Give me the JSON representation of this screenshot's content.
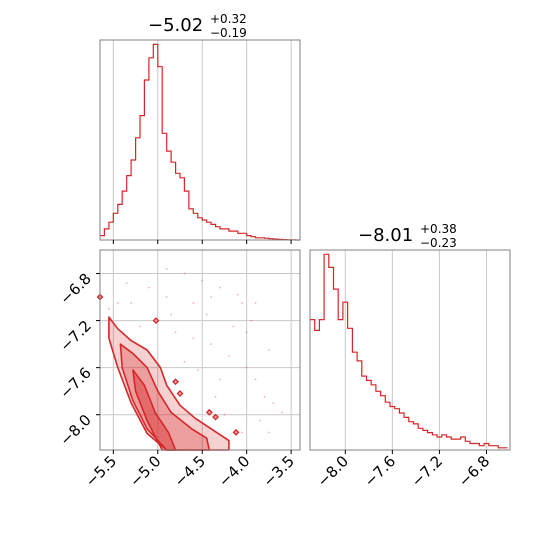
{
  "chart_data": [
    {
      "type": "histogram",
      "panel": "top-left",
      "title": "−5.02",
      "title_plus": "+0.32",
      "title_minus": "−0.19",
      "xlim": [
        -5.65,
        -3.4
      ],
      "step_x": [
        -5.65,
        -5.6,
        -5.55,
        -5.5,
        -5.45,
        -5.4,
        -5.35,
        -5.3,
        -5.25,
        -5.2,
        -5.15,
        -5.1,
        -5.05,
        -5.0,
        -4.95,
        -4.9,
        -4.85,
        -4.8,
        -4.75,
        -4.7,
        -4.65,
        -4.6,
        -4.55,
        -4.5,
        -4.45,
        -4.4,
        -4.35,
        -4.3,
        -4.25,
        -4.2,
        -4.15,
        -4.1,
        -4.05,
        -4.0,
        -3.95,
        -3.9,
        -3.85,
        -3.8,
        -3.75,
        -3.7,
        -3.65,
        -3.6,
        -3.55,
        -3.5,
        -3.45,
        -3.4
      ],
      "step_y": [
        0.02,
        0.05,
        0.08,
        0.12,
        0.16,
        0.22,
        0.29,
        0.36,
        0.46,
        0.56,
        0.72,
        0.82,
        0.88,
        0.78,
        0.48,
        0.4,
        0.35,
        0.3,
        0.28,
        0.22,
        0.14,
        0.12,
        0.1,
        0.09,
        0.08,
        0.07,
        0.06,
        0.05,
        0.05,
        0.04,
        0.04,
        0.03,
        0.03,
        0.02,
        0.015,
        0.01,
        0.01,
        0.008,
        0.006,
        0.004,
        0.003,
        0.002,
        0.001,
        0.001,
        0.0
      ],
      "ymax": 0.9,
      "color": "#d62728",
      "grid": true
    },
    {
      "type": "histogram",
      "panel": "bottom-right",
      "title": "−8.01",
      "title_plus": "+0.38",
      "title_minus": "−0.23",
      "xlim": [
        -8.3,
        -6.6
      ],
      "step_x": [
        -8.3,
        -8.26,
        -8.22,
        -8.18,
        -8.14,
        -8.1,
        -8.06,
        -8.02,
        -7.98,
        -7.94,
        -7.9,
        -7.86,
        -7.82,
        -7.78,
        -7.74,
        -7.7,
        -7.66,
        -7.62,
        -7.58,
        -7.54,
        -7.5,
        -7.46,
        -7.42,
        -7.38,
        -7.34,
        -7.3,
        -7.26,
        -7.22,
        -7.18,
        -7.14,
        -7.1,
        -7.06,
        -7.02,
        -6.98,
        -6.94,
        -6.9,
        -6.86,
        -6.82,
        -6.78,
        -6.74,
        -6.7,
        -6.66,
        -6.62
      ],
      "step_y": [
        0.6,
        0.55,
        0.6,
        0.9,
        0.84,
        0.74,
        0.6,
        0.68,
        0.56,
        0.45,
        0.41,
        0.34,
        0.32,
        0.3,
        0.27,
        0.25,
        0.22,
        0.2,
        0.19,
        0.17,
        0.15,
        0.13,
        0.12,
        0.1,
        0.09,
        0.08,
        0.07,
        0.06,
        0.07,
        0.06,
        0.05,
        0.05,
        0.06,
        0.04,
        0.03,
        0.03,
        0.02,
        0.03,
        0.02,
        0.02,
        0.01,
        0.01
      ],
      "ymax": 0.92,
      "color": "#d62728",
      "grid": true
    },
    {
      "type": "contour",
      "panel": "bottom-left",
      "xlim": [
        -5.65,
        -3.4
      ],
      "ylim": [
        -8.3,
        -6.6
      ],
      "contours": [
        {
          "level": "outer",
          "alpha": 0.35,
          "points": [
            [
              -5.55,
              -7.17
            ],
            [
              -5.45,
              -7.27
            ],
            [
              -5.3,
              -7.37
            ],
            [
              -5.12,
              -7.45
            ],
            [
              -4.97,
              -7.6
            ],
            [
              -4.9,
              -7.75
            ],
            [
              -4.75,
              -7.92
            ],
            [
              -4.58,
              -8.03
            ],
            [
              -4.4,
              -8.12
            ],
            [
              -4.2,
              -8.22
            ],
            [
              -4.2,
              -8.3
            ],
            [
              -4.9,
              -8.3
            ],
            [
              -5.12,
              -8.16
            ],
            [
              -5.3,
              -7.9
            ],
            [
              -5.45,
              -7.6
            ],
            [
              -5.55,
              -7.35
            ]
          ]
        },
        {
          "level": "middle",
          "alpha": 0.5,
          "points": [
            [
              -5.42,
              -7.4
            ],
            [
              -5.28,
              -7.48
            ],
            [
              -5.12,
              -7.6
            ],
            [
              -5.0,
              -7.8
            ],
            [
              -4.85,
              -7.98
            ],
            [
              -4.62,
              -8.12
            ],
            [
              -4.45,
              -8.2
            ],
            [
              -4.42,
              -8.3
            ],
            [
              -4.9,
              -8.3
            ],
            [
              -5.12,
              -8.12
            ],
            [
              -5.28,
              -7.88
            ],
            [
              -5.4,
              -7.6
            ]
          ]
        },
        {
          "level": "inner",
          "alpha": 0.7,
          "points": [
            [
              -5.28,
              -7.62
            ],
            [
              -5.15,
              -7.75
            ],
            [
              -5.03,
              -7.98
            ],
            [
              -4.88,
              -8.15
            ],
            [
              -4.8,
              -8.3
            ],
            [
              -4.95,
              -8.3
            ],
            [
              -5.12,
              -8.05
            ],
            [
              -5.25,
              -7.8
            ]
          ]
        }
      ],
      "scatter_points": [
        [
          -4.9,
          -6.76
        ],
        [
          -4.7,
          -6.8
        ],
        [
          -4.5,
          -6.86
        ],
        [
          -4.3,
          -6.92
        ],
        [
          -4.1,
          -6.98
        ],
        [
          -4.05,
          -7.05
        ],
        [
          -3.95,
          -7.2
        ],
        [
          -4.6,
          -7.05
        ],
        [
          -4.9,
          -7.0
        ],
        [
          -5.1,
          -6.92
        ],
        [
          -5.3,
          -7.05
        ],
        [
          -5.35,
          -6.88
        ],
        [
          -4.8,
          -7.3
        ],
        [
          -4.6,
          -7.35
        ],
        [
          -4.4,
          -7.4
        ],
        [
          -4.2,
          -7.5
        ],
        [
          -4.0,
          -7.6
        ],
        [
          -3.9,
          -7.7
        ],
        [
          -3.8,
          -7.85
        ],
        [
          -3.7,
          -7.9
        ],
        [
          -3.6,
          -7.98
        ],
        [
          -3.85,
          -8.05
        ],
        [
          -4.05,
          -8.15
        ],
        [
          -4.3,
          -7.7
        ],
        [
          -4.55,
          -7.62
        ],
        [
          -4.7,
          -7.55
        ],
        [
          -4.75,
          -7.8
        ],
        [
          -4.25,
          -8.0
        ],
        [
          -3.75,
          -8.15
        ],
        [
          -4.15,
          -7.25
        ],
        [
          -4.45,
          -7.15
        ],
        [
          -4.85,
          -7.15
        ],
        [
          -5.2,
          -7.25
        ],
        [
          -5.45,
          -7.05
        ],
        [
          -5.55,
          -7.1
        ],
        [
          -4.35,
          -7.85
        ],
        [
          -4.0,
          -7.3
        ],
        [
          -3.75,
          -7.45
        ],
        [
          -3.9,
          -7.05
        ],
        [
          -4.4,
          -7.0
        ]
      ],
      "islands": [
        [
          -5.65,
          -7.0
        ],
        [
          -5.02,
          -7.2
        ],
        [
          -4.8,
          -7.72
        ],
        [
          -4.75,
          -7.82
        ],
        [
          -4.42,
          -7.98
        ],
        [
          -4.35,
          -8.02
        ],
        [
          -4.12,
          -8.15
        ]
      ],
      "color": "#d62728",
      "grid": true,
      "xticks": [
        "−5.5",
        "−5.0",
        "−4.5",
        "−4.0",
        "−3.5"
      ],
      "xtick_values": [
        -5.5,
        -5.0,
        -4.5,
        -4.0,
        -3.5
      ],
      "yticks": [
        "−6.8",
        "−7.2",
        "−7.6",
        "−8.0"
      ],
      "ytick_values": [
        -6.8,
        -7.2,
        -7.6,
        -8.0
      ]
    }
  ],
  "bottom_right_xticks": [
    "−8.0",
    "−7.6",
    "−7.2",
    "−6.8"
  ],
  "bottom_right_xtick_values": [
    -8.0,
    -7.6,
    -7.2,
    -6.8
  ]
}
